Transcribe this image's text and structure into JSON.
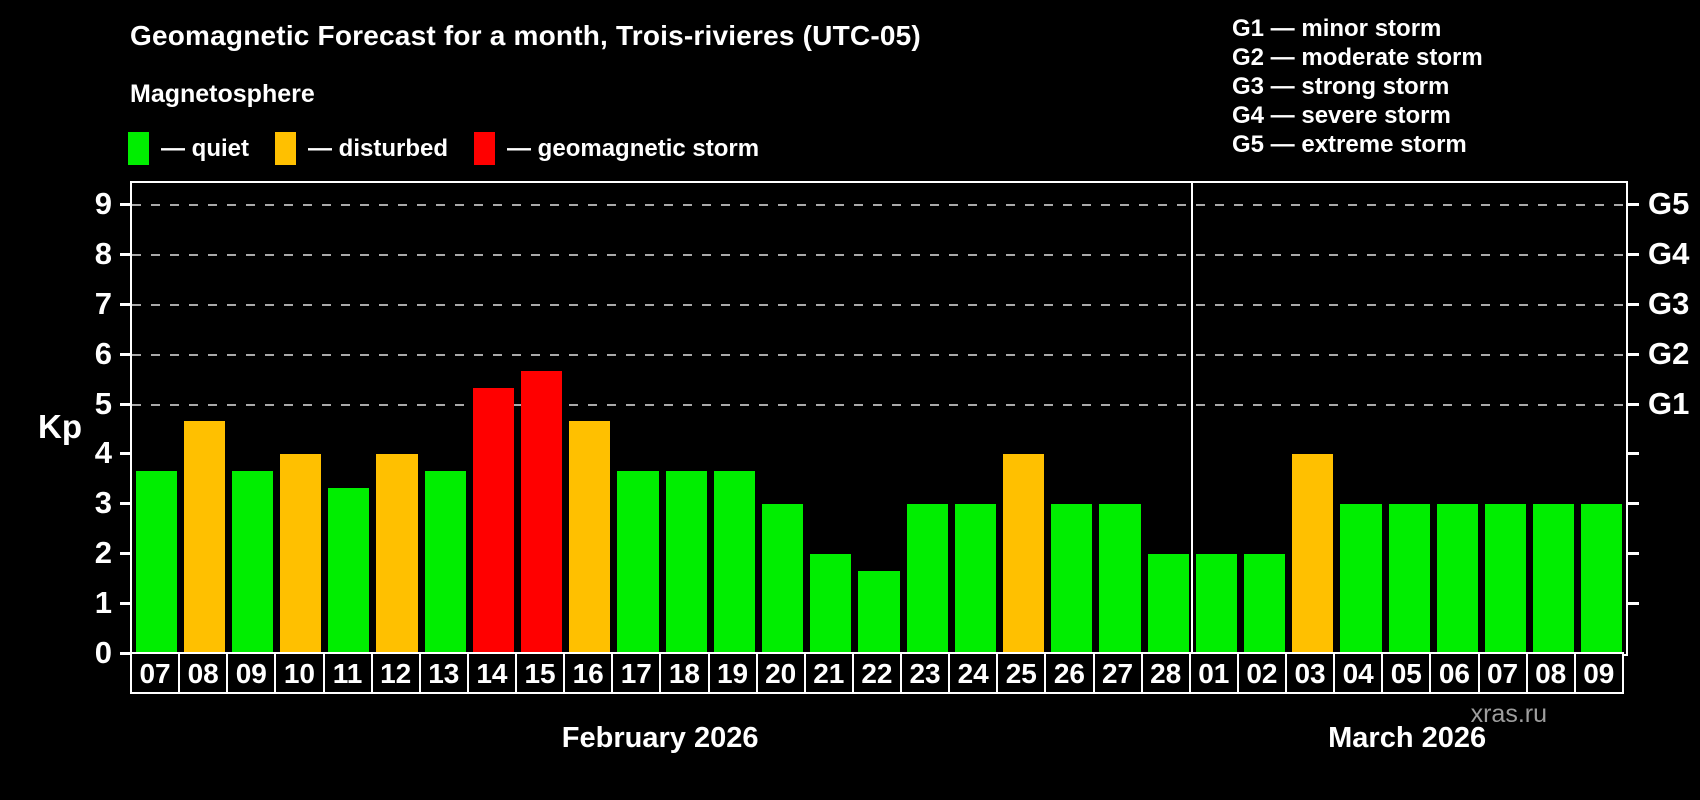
{
  "header": {
    "title": "Geomagnetic Forecast for a month, Trois-rivieres (UTC-05)",
    "subtitle": "Magnetosphere"
  },
  "legend": {
    "items": [
      {
        "key": "quiet",
        "label": "— quiet",
        "color": "#00ee00"
      },
      {
        "key": "disturbed",
        "label": "— disturbed",
        "color": "#ffc000"
      },
      {
        "key": "storm",
        "label": "— geomagnetic storm",
        "color": "#ff0000"
      }
    ]
  },
  "g_scale_legend": [
    "G1 — minor storm",
    "G2 — moderate storm",
    "G3 — strong storm",
    "G4 — severe storm",
    "G5 — extreme storm"
  ],
  "watermark": "xras.ru",
  "chart_data": {
    "type": "bar",
    "ylabel": "Kp",
    "ylim": [
      0,
      9.4
    ],
    "grid": "dashed horizontal lines at Kp 5-9 only",
    "legend_position": "top",
    "y_ticks": [
      0,
      1,
      2,
      3,
      4,
      5,
      6,
      7,
      8,
      9
    ],
    "gridlines_at": [
      5,
      6,
      7,
      8,
      9
    ],
    "right_axis_ticks": [
      1,
      2,
      3,
      4,
      5,
      6,
      7,
      8,
      9
    ],
    "right_axis_labels": [
      {
        "value": 5,
        "label": "G1"
      },
      {
        "value": 6,
        "label": "G2"
      },
      {
        "value": 7,
        "label": "G3"
      },
      {
        "value": 8,
        "label": "G4"
      },
      {
        "value": 9,
        "label": "G5"
      }
    ],
    "months": [
      {
        "label": "February 2026",
        "start_index": 0,
        "count": 22
      },
      {
        "label": "March 2026",
        "start_index": 22,
        "count": 9
      }
    ],
    "categories": [
      "07",
      "08",
      "09",
      "10",
      "11",
      "12",
      "13",
      "14",
      "15",
      "16",
      "17",
      "18",
      "19",
      "20",
      "21",
      "22",
      "23",
      "24",
      "25",
      "26",
      "27",
      "28",
      "01",
      "02",
      "03",
      "04",
      "05",
      "06",
      "07",
      "08",
      "09"
    ],
    "values": [
      3.67,
      4.67,
      3.67,
      4,
      3.33,
      4,
      3.67,
      5.33,
      5.67,
      4.67,
      3.67,
      3.67,
      3.67,
      3,
      2,
      1.67,
      3,
      3,
      4,
      3,
      3,
      2,
      2,
      2,
      4,
      3,
      3,
      3,
      3,
      3,
      3
    ],
    "conditions": [
      "quiet",
      "disturbed",
      "quiet",
      "disturbed",
      "quiet",
      "disturbed",
      "quiet",
      "storm",
      "storm",
      "disturbed",
      "quiet",
      "quiet",
      "quiet",
      "quiet",
      "quiet",
      "quiet",
      "quiet",
      "quiet",
      "disturbed",
      "quiet",
      "quiet",
      "quiet",
      "quiet",
      "quiet",
      "disturbed",
      "quiet",
      "quiet",
      "quiet",
      "quiet",
      "quiet",
      "quiet"
    ],
    "status_colors": {
      "quiet": "#00ee00",
      "disturbed": "#ffc000",
      "storm": "#ff0000"
    }
  }
}
